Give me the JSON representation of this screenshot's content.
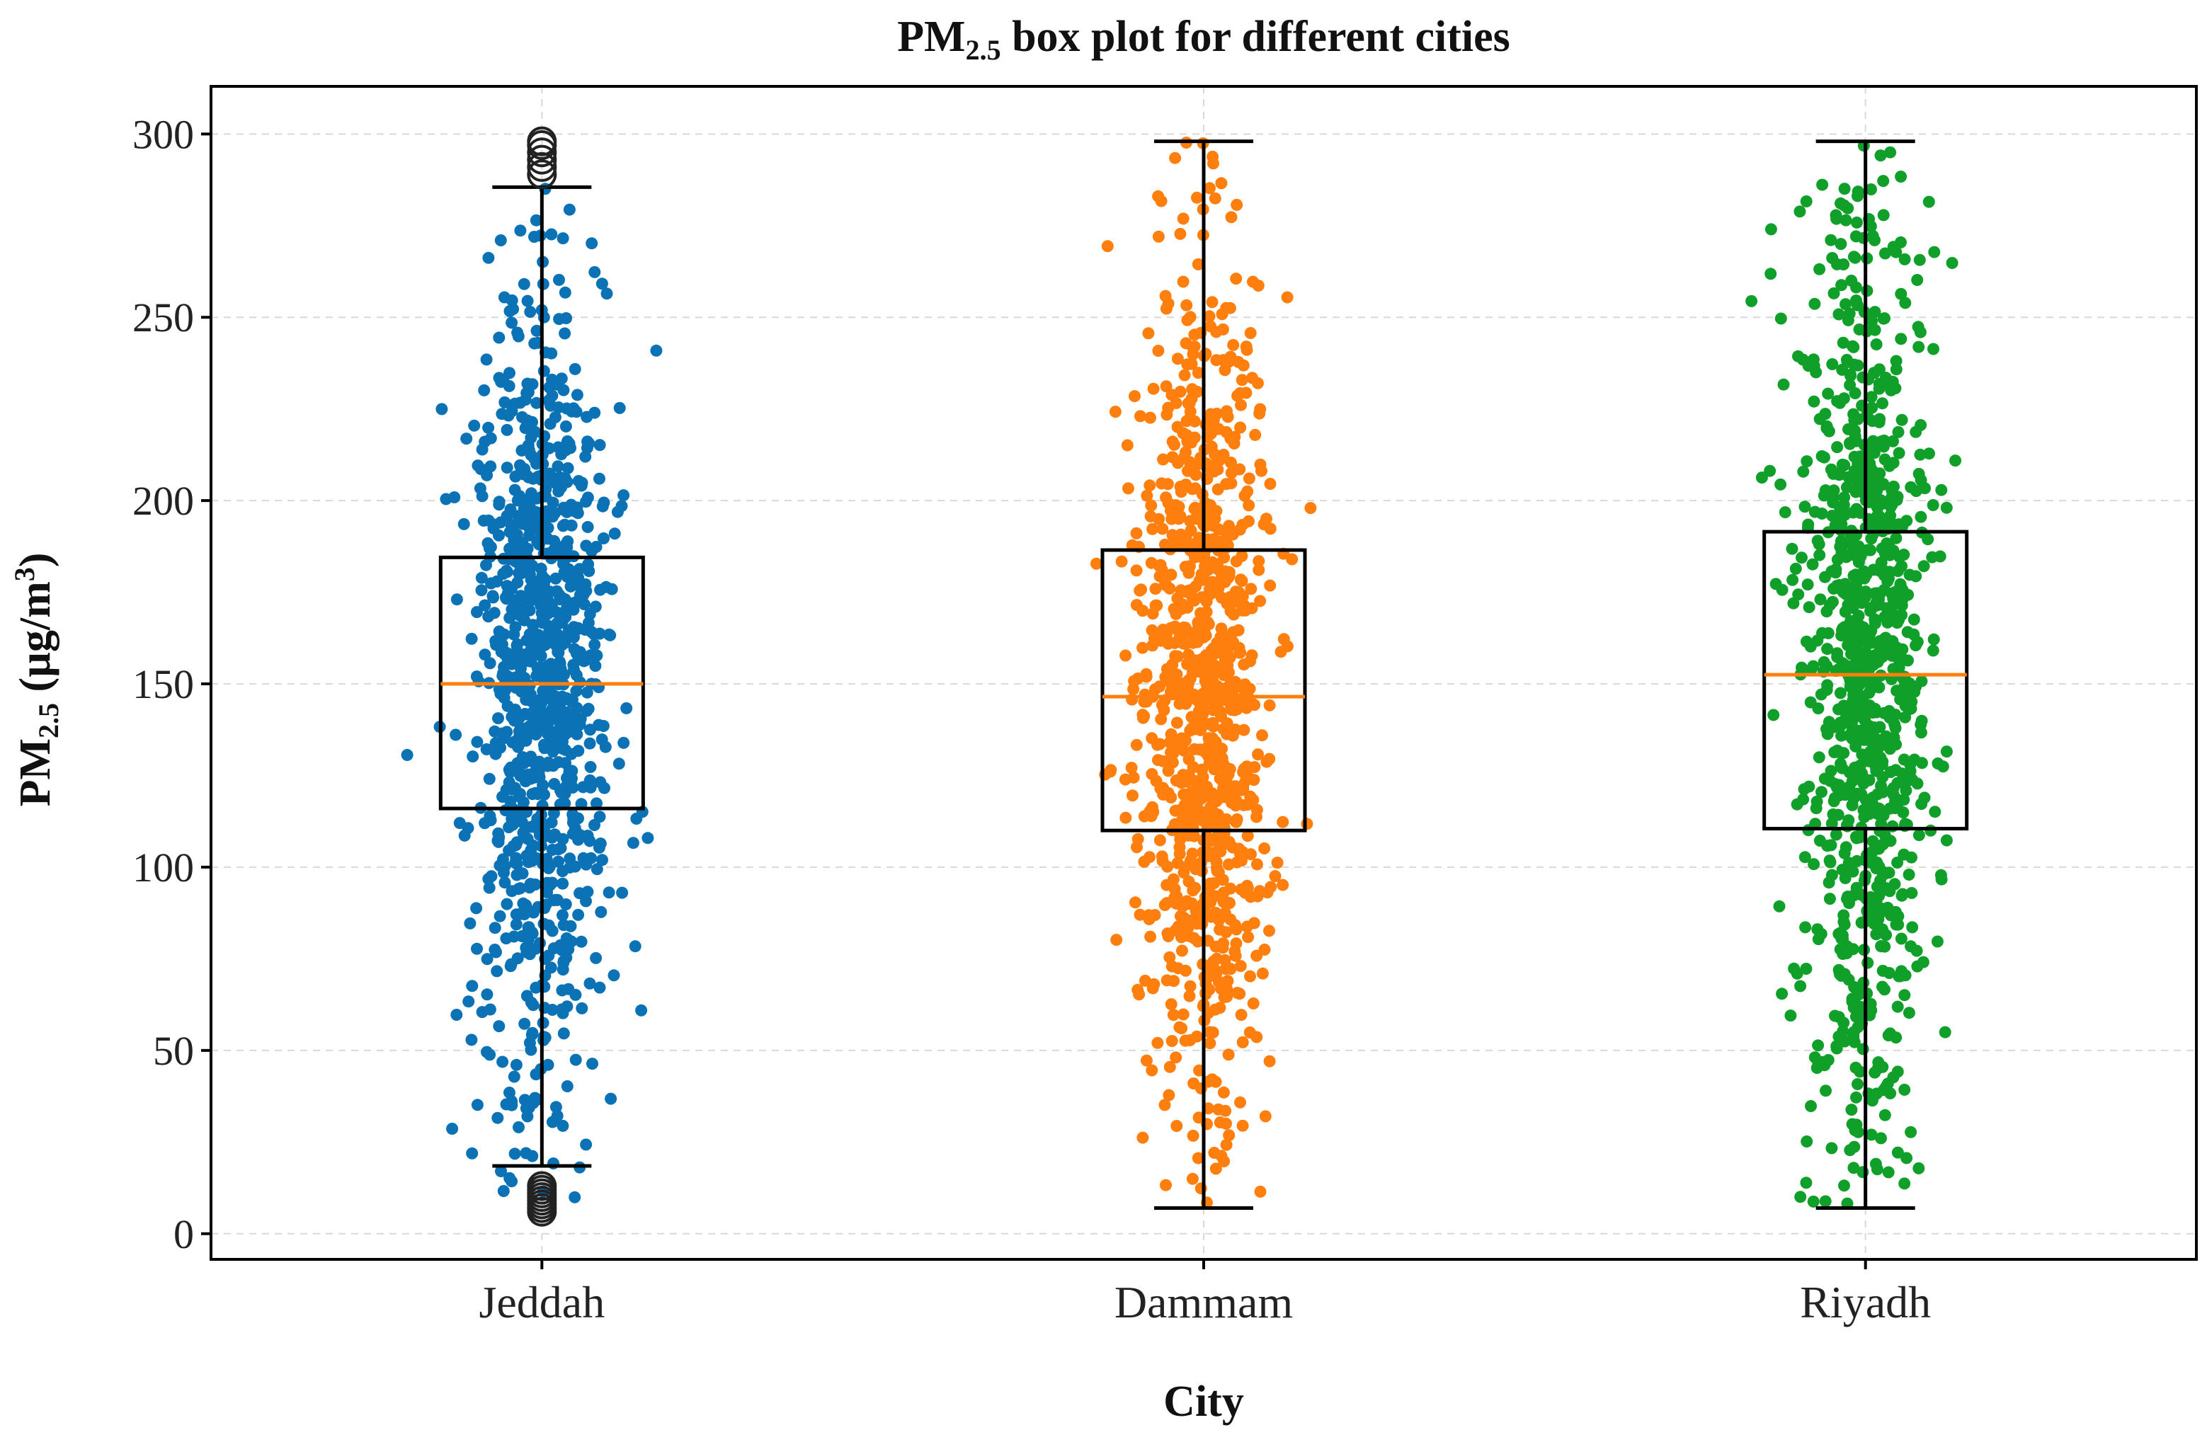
{
  "chart_data": {
    "type": "box",
    "title": {
      "pre": "PM",
      "sub": "2.5",
      "post": " box plot for different cities"
    },
    "xlabel": "City",
    "ylabel": {
      "pre": "PM",
      "sub": "2.5",
      "post": " (µg/m",
      "sup": "3",
      "end": ")"
    },
    "ylim": [
      -7,
      313
    ],
    "yticks": [
      0,
      50,
      100,
      150,
      200,
      250,
      300
    ],
    "ytick_labels": [
      "0",
      "50",
      "100",
      "150",
      "200",
      "250",
      "300"
    ],
    "grid": true,
    "categories": [
      "Jeddah",
      "Dammam",
      "Riyadh"
    ],
    "series": [
      {
        "name": "Jeddah",
        "color": "#0a72b5",
        "whisker_low": 18.5,
        "q1": 116,
        "median": 150,
        "q3": 184.5,
        "whisker_high": 285.5,
        "outliers": [
          6,
          7,
          8,
          9,
          10,
          11,
          12,
          13,
          289,
          291,
          293,
          295,
          297,
          298
        ],
        "jitter": {
          "n": 1000,
          "min": 6,
          "max": 298,
          "mean": 150,
          "sd": 55,
          "width": 0.24
        }
      },
      {
        "name": "Dammam",
        "color": "#ff7f0e",
        "whisker_low": 7,
        "q1": 110,
        "median": 146.5,
        "q3": 186.5,
        "whisker_high": 298,
        "outliers": [],
        "jitter": {
          "n": 1000,
          "min": 7,
          "max": 298,
          "mean": 149,
          "sd": 58,
          "width": 0.24
        }
      },
      {
        "name": "Riyadh",
        "color": "#10a02a",
        "whisker_low": 7,
        "q1": 110.5,
        "median": 152.5,
        "q3": 191.5,
        "whisker_high": 298,
        "outliers": [],
        "jitter": {
          "n": 1000,
          "min": 7,
          "max": 298,
          "mean": 152,
          "sd": 62,
          "width": 0.24
        }
      }
    ],
    "box_color": "#000000",
    "median_color": "#ff7f0e"
  }
}
